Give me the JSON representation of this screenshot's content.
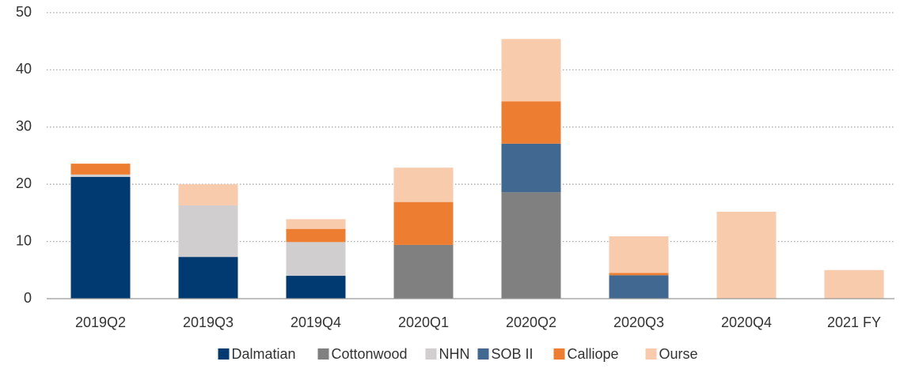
{
  "chart_data": {
    "type": "stacked_bar",
    "categories": [
      "2019Q2",
      "2019Q3",
      "2019Q4",
      "2020Q1",
      "2020Q2",
      "2020Q3",
      "2020Q4",
      "2021 FY"
    ],
    "series": [
      {
        "name": "Dalmatian",
        "color": "#003a70",
        "values": [
          21.3,
          7.3,
          4.0,
          0,
          0,
          0,
          0,
          0
        ]
      },
      {
        "name": "Cottonwood",
        "color": "#808080",
        "values": [
          0,
          0,
          0,
          9.4,
          18.6,
          0,
          0,
          0
        ]
      },
      {
        "name": "NHN",
        "color": "#d0cece",
        "values": [
          0.4,
          9.0,
          5.9,
          0,
          0,
          0,
          0,
          0
        ]
      },
      {
        "name": "SOB II",
        "color": "#416891",
        "values": [
          0,
          0,
          0,
          0,
          8.5,
          4.1,
          0,
          0
        ]
      },
      {
        "name": "Calliope",
        "color": "#ed7d31",
        "values": [
          1.9,
          0,
          2.3,
          7.5,
          7.4,
          0.4,
          0,
          0
        ]
      },
      {
        "name": "Ourse",
        "color": "#f8cbad",
        "values": [
          0,
          3.7,
          1.7,
          6.0,
          10.9,
          6.4,
          15.2,
          5.0
        ]
      }
    ],
    "ylim": [
      0,
      50
    ],
    "yticks": [
      0,
      10,
      20,
      30,
      40,
      50
    ],
    "grid": true,
    "legend": "bottom"
  }
}
